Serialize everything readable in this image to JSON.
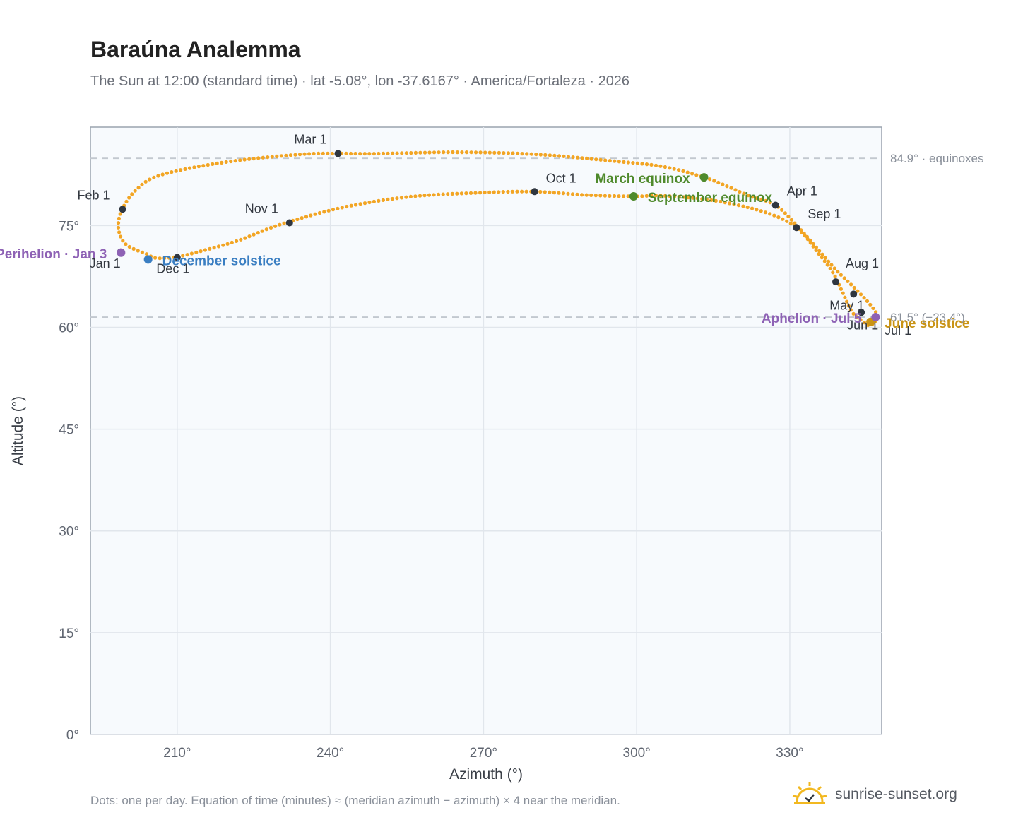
{
  "header": {
    "title": "Baraúna Analemma",
    "subtitle": "The Sun at 12:00 (standard time) · lat -5.08°, lon -37.6167° · America/Fortaleza · 2026"
  },
  "footer": {
    "note": "Dots: one per day. Equation of time (minutes) ≈ (meridian azimuth − azimuth) × 4 near the meridian.",
    "brand": "sunrise-sunset.org",
    "brand_icon": "sun-logo-icon"
  },
  "colors": {
    "path": "#f2a524",
    "month_marker": "#2f3640",
    "equinox": "#4f8a2c",
    "december_solstice": "#3a7ec2",
    "june_solstice": "#c99416",
    "apsis": "#8e62b5",
    "plot_bg": "#f7fafd",
    "grid": "#e1e6ec",
    "reference_line": "#c2c8cf"
  },
  "chart_data": {
    "type": "scatter",
    "xlabel": "Azimuth (°)",
    "ylabel": "Altitude (°)",
    "xlim": [
      193,
      348
    ],
    "ylim": [
      0,
      89.5
    ],
    "x_ticks": [
      210,
      240,
      270,
      300,
      330
    ],
    "x_tick_labels": [
      "210°",
      "240°",
      "270°",
      "300°",
      "330°"
    ],
    "y_ticks": [
      0,
      15,
      30,
      45,
      60,
      75
    ],
    "y_tick_labels": [
      "0°",
      "15°",
      "30°",
      "45°",
      "60°",
      "75°"
    ],
    "grid": true,
    "reference_lines": [
      {
        "y": 84.9,
        "label": "84.9° · equinoxes"
      },
      {
        "y": 61.5,
        "label": "61.5° (−23.4°)"
      }
    ],
    "series": [],
    "path_keypoints": [
      [
        204,
        70.8
      ],
      [
        200,
        72.2
      ],
      [
        198.5,
        74.5
      ],
      [
        199.1,
        77.2
      ],
      [
        202,
        80.3
      ],
      [
        207,
        82.5
      ],
      [
        220,
        84.4
      ],
      [
        234.5,
        85.5
      ],
      [
        241.5,
        85.6
      ],
      [
        250,
        85.6
      ],
      [
        265,
        85.8
      ],
      [
        280,
        85.5
      ],
      [
        294,
        84.6
      ],
      [
        305,
        83.7
      ],
      [
        313.2,
        82.1
      ],
      [
        318,
        80.7
      ],
      [
        322,
        79.4
      ],
      [
        327.2,
        78.0
      ],
      [
        331.5,
        74.9
      ],
      [
        335.5,
        71.5
      ],
      [
        339,
        68.5
      ],
      [
        342,
        66.3
      ],
      [
        345,
        64.0
      ],
      [
        346.8,
        62.3
      ],
      [
        347,
        61.5
      ],
      [
        346.6,
        60.7
      ],
      [
        345.4,
        60.3
      ],
      [
        344.3,
        60.9
      ],
      [
        343.2,
        61.5
      ],
      [
        342,
        62.5
      ],
      [
        340.3,
        65.2
      ],
      [
        338.5,
        68.0
      ],
      [
        335.5,
        71.0
      ],
      [
        331.3,
        74.7
      ],
      [
        325,
        77.0
      ],
      [
        315,
        78.7
      ],
      [
        305,
        79.4
      ],
      [
        299.4,
        79.3
      ],
      [
        290,
        79.5
      ],
      [
        280,
        80.0
      ],
      [
        268,
        79.8
      ],
      [
        255,
        79.2
      ],
      [
        242,
        77.6
      ],
      [
        230,
        75.1
      ],
      [
        222,
        72.8
      ],
      [
        215,
        71.3
      ],
      [
        210,
        70.4
      ],
      [
        206,
        70.2
      ],
      [
        204,
        70.8
      ]
    ],
    "month_markers": [
      {
        "label": "Jan 1",
        "x": 198.9,
        "y": 71.1
      },
      {
        "label": "Feb 1",
        "x": 199.3,
        "y": 77.4
      },
      {
        "label": "Mar 1",
        "x": 241.5,
        "y": 85.6
      },
      {
        "label": "Apr 1",
        "x": 327.2,
        "y": 78.0
      },
      {
        "label": "May 1",
        "x": 342.5,
        "y": 64.9
      },
      {
        "label": "Jun 1",
        "x": 344.0,
        "y": 62.2
      },
      {
        "label": "Jul 1",
        "x": 345.8,
        "y": 60.8
      },
      {
        "label": "Aug 1",
        "x": 339.0,
        "y": 66.7
      },
      {
        "label": "Sep 1",
        "x": 331.3,
        "y": 74.7
      },
      {
        "label": "Oct 1",
        "x": 280.0,
        "y": 80.0
      },
      {
        "label": "Nov 1",
        "x": 232.0,
        "y": 75.4
      },
      {
        "label": "Dec 1",
        "x": 210.0,
        "y": 70.3
      }
    ],
    "events": [
      {
        "label": "March equinox",
        "x": 313.2,
        "y": 82.1,
        "kind": "equinox"
      },
      {
        "label": "September equinox",
        "x": 299.4,
        "y": 79.3,
        "kind": "equinox"
      },
      {
        "label": "December solstice",
        "x": 204.3,
        "y": 70.0,
        "kind": "december_solstice"
      },
      {
        "label": "June solstice",
        "x": 345.8,
        "y": 60.8,
        "kind": "june_solstice"
      },
      {
        "label": "Perihelion · Jan 3",
        "x": 199.0,
        "y": 71.0,
        "kind": "apsis"
      },
      {
        "label": "Aphelion · Jul 5",
        "x": 346.8,
        "y": 61.5,
        "kind": "apsis"
      }
    ]
  }
}
